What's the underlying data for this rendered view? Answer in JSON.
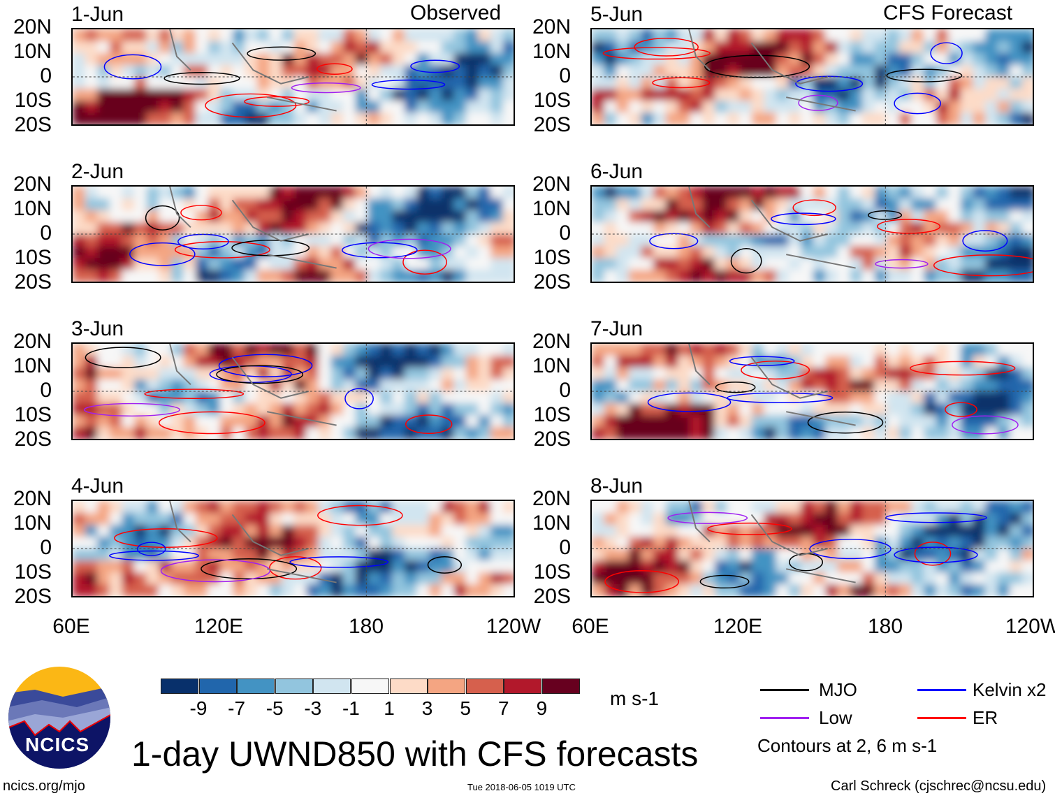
{
  "left_header": "Observed",
  "right_header": "CFS Forecast",
  "panels": [
    {
      "date": "1-Jun",
      "group": "observed"
    },
    {
      "date": "2-Jun",
      "group": "observed"
    },
    {
      "date": "3-Jun",
      "group": "observed"
    },
    {
      "date": "4-Jun",
      "group": "observed"
    },
    {
      "date": "5-Jun",
      "group": "forecast"
    },
    {
      "date": "6-Jun",
      "group": "forecast"
    },
    {
      "date": "7-Jun",
      "group": "forecast"
    },
    {
      "date": "8-Jun",
      "group": "forecast"
    }
  ],
  "lat_labels": [
    "20N",
    "10N",
    "0",
    "10S",
    "20S"
  ],
  "lon_labels": [
    "60E",
    "120E",
    "180",
    "120W"
  ],
  "colorbar": {
    "colors": [
      "#08306b",
      "#2166ac",
      "#4393c3",
      "#92c5de",
      "#d1e5f0",
      "#f7f7f7",
      "#fddbc7",
      "#f4a582",
      "#d6604d",
      "#b2182b",
      "#67001f"
    ],
    "labels": [
      "-9",
      "-7",
      "-5",
      "-3",
      "-1",
      "1",
      "3",
      "5",
      "7",
      "9"
    ],
    "units": "m s-1"
  },
  "title": "1-day UWND850 with CFS forecasts",
  "legend": {
    "items": [
      {
        "label": "MJO",
        "color": "#000000"
      },
      {
        "label": "Kelvin x2",
        "color": "#0000ff"
      },
      {
        "label": "Low",
        "color": "#a020f0"
      },
      {
        "label": "ER",
        "color": "#ff0000"
      }
    ],
    "note": "Contours at 2, 6 m s-1"
  },
  "logo": {
    "text": "NCICS"
  },
  "footer": {
    "url": "ncics.org/mjo",
    "timestamp": "Tue 2018-06-05 1019 UTC",
    "author": "Carl Schreck (cjschrec@ncsu.edu)"
  }
}
